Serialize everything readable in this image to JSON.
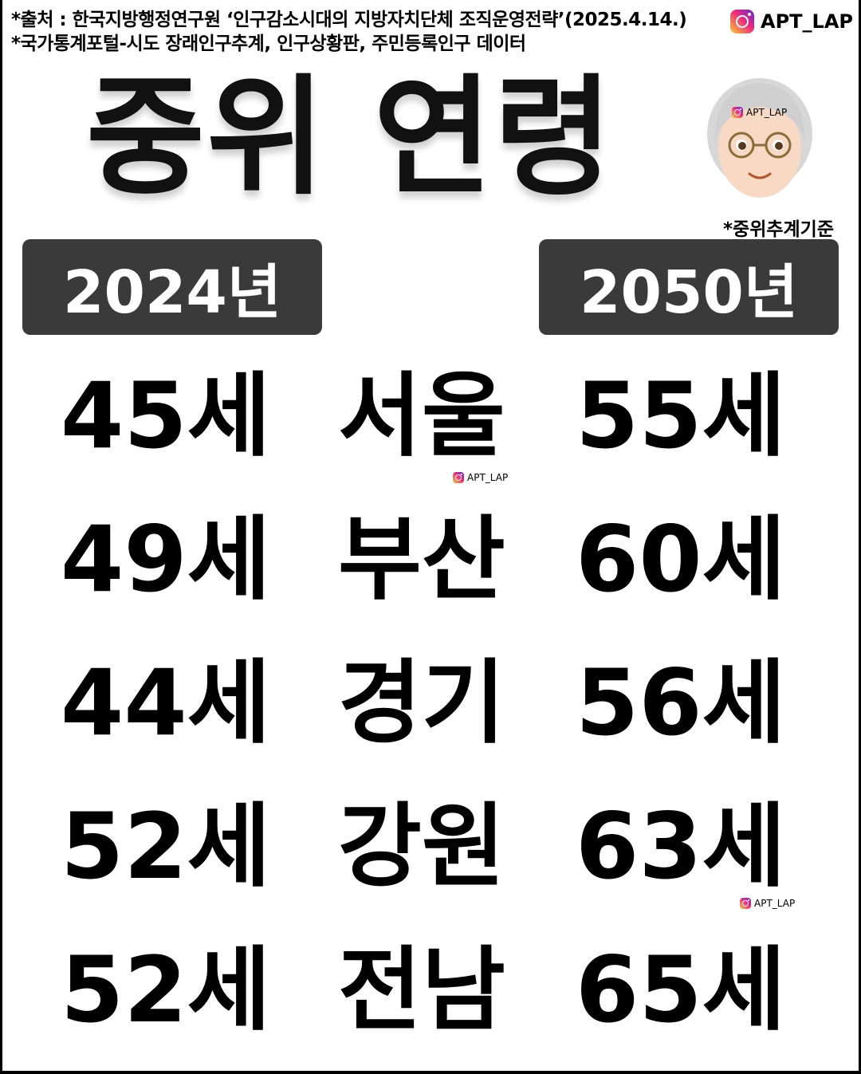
{
  "source": {
    "line1": "*출처 : 한국지방행정연구원 ‘인구감소시대의 지방자치단체 조직운영전략’(2025.4.14.)",
    "line2": "*국가통계포털-시도 장래인구추계, 인구상황판, 주민등록인구 데이터"
  },
  "watermark": "APT_LAP",
  "title": "중위 연령",
  "note": "*중위추계기준",
  "years": {
    "left": "2024년",
    "right": "2050년"
  },
  "rows": [
    {
      "age2024": "45세",
      "region": "서울",
      "age2050": "55세"
    },
    {
      "age2024": "49세",
      "region": "부산",
      "age2050": "60세"
    },
    {
      "age2024": "44세",
      "region": "경기",
      "age2050": "56세"
    },
    {
      "age2024": "52세",
      "region": "강원",
      "age2050": "63세"
    },
    {
      "age2024": "52세",
      "region": "전남",
      "age2050": "65세"
    }
  ]
}
